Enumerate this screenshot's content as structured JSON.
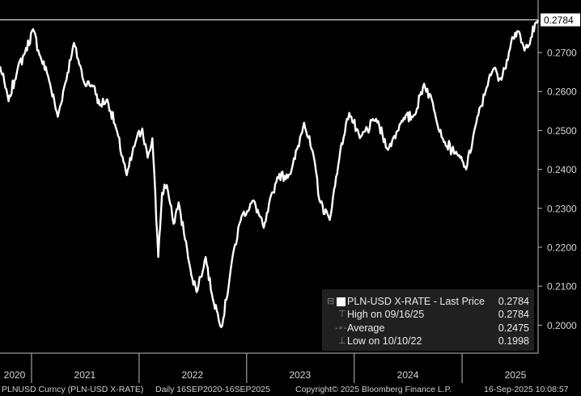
{
  "chart_data": {
    "type": "line",
    "title": "",
    "xlabel": "",
    "ylabel": "",
    "series": [
      {
        "name": "PLN-USD X-RATE",
        "color": "#ffffff",
        "points": [
          [
            "2020-09-16",
            0.2665
          ],
          [
            "2020-10-15",
            0.2575
          ],
          [
            "2020-11-15",
            0.266
          ],
          [
            "2020-12-10",
            0.27
          ],
          [
            "2021-01-06",
            0.276
          ],
          [
            "2021-01-31",
            0.269
          ],
          [
            "2021-02-26",
            0.264
          ],
          [
            "2021-03-31",
            0.2535
          ],
          [
            "2021-05-25",
            0.2725
          ],
          [
            "2021-06-30",
            0.262
          ],
          [
            "2021-07-31",
            0.2615
          ],
          [
            "2021-08-20",
            0.2565
          ],
          [
            "2021-09-15",
            0.258
          ],
          [
            "2021-10-15",
            0.2505
          ],
          [
            "2021-11-20",
            0.2385
          ],
          [
            "2021-12-20",
            0.247
          ],
          [
            "2022-01-12",
            0.2505
          ],
          [
            "2022-01-30",
            0.243
          ],
          [
            "2022-02-15",
            0.248
          ],
          [
            "2022-03-07",
            0.2175
          ],
          [
            "2022-03-20",
            0.234
          ],
          [
            "2022-04-05",
            0.236
          ],
          [
            "2022-04-28",
            0.226
          ],
          [
            "2022-05-15",
            0.2315
          ],
          [
            "2022-06-20",
            0.216
          ],
          [
            "2022-07-15",
            0.2085
          ],
          [
            "2022-08-15",
            0.2175
          ],
          [
            "2022-09-05",
            0.208
          ],
          [
            "2022-09-25",
            0.203
          ],
          [
            "2022-10-10",
            0.1998
          ],
          [
            "2022-11-15",
            0.218
          ],
          [
            "2022-12-15",
            0.228
          ],
          [
            "2023-01-25",
            0.232
          ],
          [
            "2023-02-28",
            0.225
          ],
          [
            "2023-04-15",
            0.238
          ],
          [
            "2023-05-31",
            0.239
          ],
          [
            "2023-07-15",
            0.252
          ],
          [
            "2023-08-20",
            0.242
          ],
          [
            "2023-09-05",
            0.232
          ],
          [
            "2023-10-10",
            0.227
          ],
          [
            "2023-11-15",
            0.245
          ],
          [
            "2023-12-15",
            0.2545
          ],
          [
            "2024-01-20",
            0.248
          ],
          [
            "2024-03-15",
            0.253
          ],
          [
            "2024-04-25",
            0.245
          ],
          [
            "2024-06-10",
            0.2525
          ],
          [
            "2024-07-25",
            0.254
          ],
          [
            "2024-08-25",
            0.262
          ],
          [
            "2024-09-20",
            0.258
          ],
          [
            "2024-10-31",
            0.247
          ],
          [
            "2024-12-15",
            0.244
          ],
          [
            "2025-01-15",
            0.24
          ],
          [
            "2025-02-15",
            0.251
          ],
          [
            "2025-03-25",
            0.261
          ],
          [
            "2025-04-20",
            0.266
          ],
          [
            "2025-05-15",
            0.263
          ],
          [
            "2025-06-20",
            0.274
          ],
          [
            "2025-07-10",
            0.2755
          ],
          [
            "2025-08-01",
            0.2705
          ],
          [
            "2025-09-16",
            0.2784
          ]
        ]
      }
    ],
    "x_range": [
      "2020-09-16",
      "2025-09-16"
    ],
    "x_ticks": [
      "2020",
      "2021",
      "2022",
      "2023",
      "2024",
      "2025"
    ],
    "x_tick_dates": [
      "2020-07-01",
      "2021-07-01",
      "2022-07-01",
      "2023-07-01",
      "2024-07-01",
      "2025-07-01"
    ],
    "ylim": [
      0.1928,
      0.2835
    ],
    "y_ticks": [
      "0.2000",
      "0.2100",
      "0.2200",
      "0.2300",
      "0.2400",
      "0.2500",
      "0.2600",
      "0.2700"
    ],
    "y_tick_values": [
      0.2,
      0.21,
      0.22,
      0.23,
      0.24,
      0.25,
      0.26,
      0.27
    ],
    "y_axis_side": "right",
    "grid": false,
    "last_price": {
      "value": 0.2784,
      "label": "0.2784"
    },
    "legend": {
      "title": "PLN-USD X-RATE - Last Price",
      "title_value": "0.2784",
      "rows": [
        {
          "label": "High on 09/16/25",
          "value": "0.2784"
        },
        {
          "label": "Average",
          "value": "0.2475"
        },
        {
          "label": "Low on 10/10/22",
          "value": "0.1998"
        }
      ],
      "placement": "bottom-right"
    }
  },
  "footer": {
    "ticker": "PLNUSD Curncy (PLN-USD X-RATE)",
    "period": "Daily 16SEP2020-16SEP2025",
    "copyright": "Copyright© 2025 Bloomberg Finance L.P.",
    "timestamp": "16-Sep-2025 10:08:57"
  },
  "colors": {
    "background": "#000000",
    "line": "#ffffff",
    "axis": "#bdbdbd",
    "legend_bg": "#202020"
  }
}
